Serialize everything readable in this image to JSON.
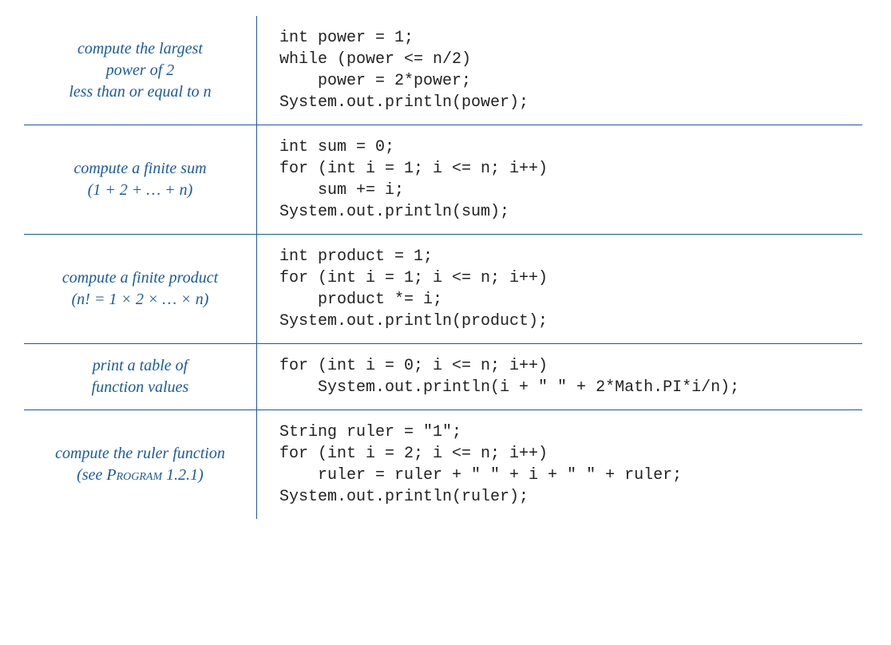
{
  "colors": {
    "accent": "#1a5a9e",
    "text": "#222222",
    "background": "#ffffff"
  },
  "typography": {
    "desc_font": "Georgia serif italic",
    "desc_fontsize": 20,
    "code_font": "Lucida Console monospace",
    "code_fontsize": 20
  },
  "rows": [
    {
      "desc_html": "compute the largest<br>power of 2<br>less than or equal to n",
      "code": "int power = 1;\nwhile (power <= n/2)\n    power = 2*power;\nSystem.out.println(power);"
    },
    {
      "desc_html": "compute a finite sum<br>(1 + 2 + … + n)",
      "code": "int sum = 0;\nfor (int i = 1; i <= n; i++)\n    sum += i;\nSystem.out.println(sum);"
    },
    {
      "desc_html": "compute a finite product<br>(n! = 1 × 2 ×  …  × n)",
      "code": "int product = 1;\nfor (int i = 1; i <= n; i++)\n    product *= i;\nSystem.out.println(product);"
    },
    {
      "desc_html": "print a table of<br>function values",
      "code": "for (int i = 0; i <= n; i++)\n    System.out.println(i + \" \" + 2*Math.PI*i/n);"
    },
    {
      "desc_html": "compute the ruler function<br>(see <span class=\"smallcaps\">Program</span> 1.2.1)",
      "code": "String ruler = \"1\";\nfor (int i = 2; i <= n; i++)\n    ruler = ruler + \" \" + i + \" \" + ruler;\nSystem.out.println(ruler);"
    }
  ]
}
